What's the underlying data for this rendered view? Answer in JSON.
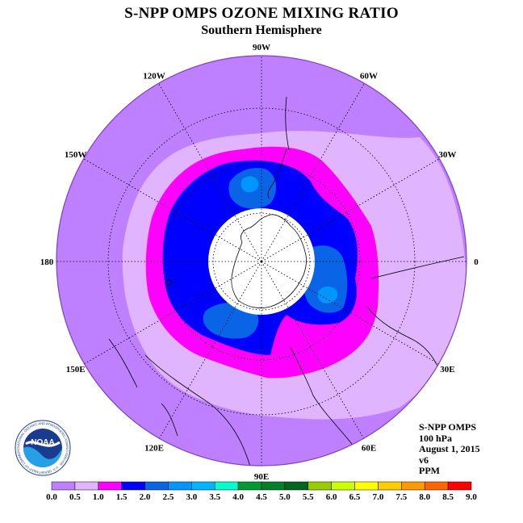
{
  "header": {
    "title": "S-NPP OMPS OZONE MIXING RATIO",
    "subtitle": "Southern Hemisphere"
  },
  "map": {
    "projection": "south polar stereographic",
    "longitude_labels": [
      {
        "text": "90W",
        "lon": -90
      },
      {
        "text": "60W",
        "lon": -60
      },
      {
        "text": "30W",
        "lon": -30
      },
      {
        "text": "0",
        "lon": 0
      },
      {
        "text": "30E",
        "lon": 30
      },
      {
        "text": "60E",
        "lon": 60
      },
      {
        "text": "90E",
        "lon": 90
      },
      {
        "text": "120E",
        "lon": 120
      },
      {
        "text": "150E",
        "lon": 150
      },
      {
        "text": "180",
        "lon": 180
      },
      {
        "text": "150W",
        "lon": -150
      },
      {
        "text": "120W",
        "lon": -120
      }
    ],
    "no_data_region": "white polar cap (polar night)",
    "background_color": "#bf80ff"
  },
  "info": {
    "instrument": "S-NPP OMPS",
    "level": "100 hPa",
    "date": "August 1, 2015",
    "version": "v6",
    "units": "PPM"
  },
  "logo": {
    "text": "NOAA",
    "ring_text": "NATIONAL OCEANIC AND ATMOSPHERIC ADMINISTRATION · U.S. DEPARTMENT OF COMMERCE"
  },
  "colorbar": {
    "tick_labels": [
      "0.0",
      "0.5",
      "1.0",
      "1.5",
      "2.0",
      "2.5",
      "3.0",
      "3.5",
      "4.0",
      "4.5",
      "5.0",
      "5.5",
      "6.0",
      "6.5",
      "7.0",
      "7.5",
      "8.0",
      "8.5",
      "9.0"
    ],
    "colors": [
      "#bf80ff",
      "#e1b4ff",
      "#ff00ff",
      "#0000ff",
      "#0a64e6",
      "#0096ff",
      "#00b4ff",
      "#00ffcc",
      "#009933",
      "#00802b",
      "#006622",
      "#99cc00",
      "#ccff00",
      "#ffff00",
      "#ffcc00",
      "#ff9900",
      "#ff6600",
      "#ff0000",
      "#996633"
    ]
  }
}
